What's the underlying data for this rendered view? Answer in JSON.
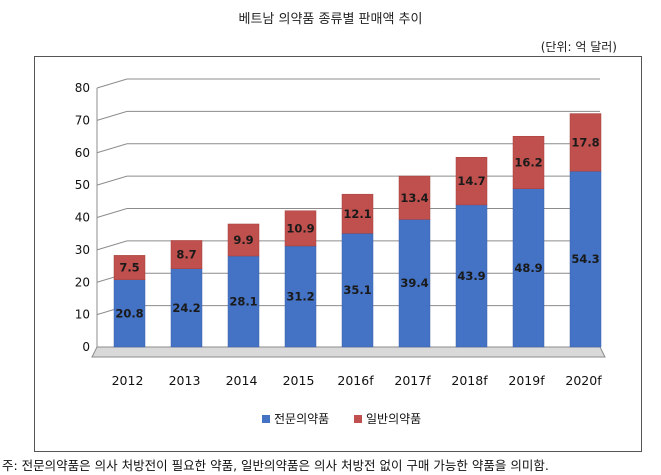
{
  "title": "베트남 의약품 종류별 판매액 추이",
  "unit_label": "(단위: 억 달러)",
  "footnote": "주: 전문의약품은 의사 처방전이 필요한 약품, 일반의약품은 의사 처방전 없이 구매 가능한 약품을 의미함.",
  "colors": {
    "prescription": "#4472C4",
    "otc": "#C0504D",
    "value_label": "#1a1a1a"
  },
  "chart_data": {
    "type": "bar",
    "stacked": true,
    "categories": [
      "2012",
      "2013",
      "2014",
      "2015",
      "2016f",
      "2017f",
      "2018f",
      "2019f",
      "2020f"
    ],
    "series": [
      {
        "name": "전문의약품",
        "values": [
          20.8,
          24.2,
          28.1,
          31.2,
          35.1,
          39.4,
          43.9,
          48.9,
          54.3
        ]
      },
      {
        "name": "일반의약품",
        "values": [
          7.5,
          8.7,
          9.9,
          10.9,
          12.1,
          13.4,
          14.7,
          16.2,
          17.8
        ]
      }
    ],
    "yticks": [
      "0",
      "10",
      "20",
      "30",
      "40",
      "50",
      "60",
      "70",
      "80"
    ],
    "ylim": [
      0,
      80
    ],
    "grid": true,
    "legend_position": "bottom"
  }
}
